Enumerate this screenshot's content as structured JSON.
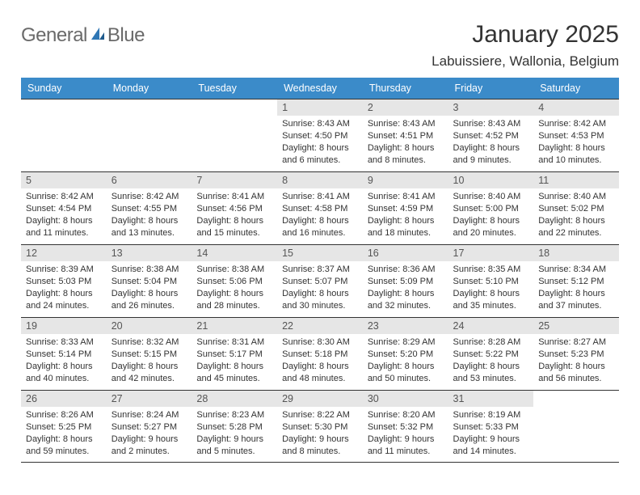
{
  "brand": {
    "word1": "General",
    "word2": "Blue",
    "text_color": "#6a6a6a",
    "accent_color": "#2f77b5"
  },
  "header": {
    "title": "January 2025",
    "location": "Labuissiere, Wallonia, Belgium"
  },
  "colors": {
    "header_bg": "#3b8bc9",
    "header_text": "#ffffff",
    "daynum_bg": "#e6e6e6",
    "border": "#333333",
    "body_text": "#333333",
    "page_bg": "#ffffff"
  },
  "fonts": {
    "family": "Arial",
    "title_size": 30,
    "subtitle_size": 17,
    "header_size": 12.5,
    "daynum_size": 12.5,
    "cell_size": 11
  },
  "calendar": {
    "type": "table",
    "columns": [
      "Sunday",
      "Monday",
      "Tuesday",
      "Wednesday",
      "Thursday",
      "Friday",
      "Saturday"
    ],
    "weeks": [
      [
        null,
        null,
        null,
        {
          "day": "1",
          "sunrise": "8:43 AM",
          "sunset": "4:50 PM",
          "daylight": "8 hours and 6 minutes."
        },
        {
          "day": "2",
          "sunrise": "8:43 AM",
          "sunset": "4:51 PM",
          "daylight": "8 hours and 8 minutes."
        },
        {
          "day": "3",
          "sunrise": "8:43 AM",
          "sunset": "4:52 PM",
          "daylight": "8 hours and 9 minutes."
        },
        {
          "day": "4",
          "sunrise": "8:42 AM",
          "sunset": "4:53 PM",
          "daylight": "8 hours and 10 minutes."
        }
      ],
      [
        {
          "day": "5",
          "sunrise": "8:42 AM",
          "sunset": "4:54 PM",
          "daylight": "8 hours and 11 minutes."
        },
        {
          "day": "6",
          "sunrise": "8:42 AM",
          "sunset": "4:55 PM",
          "daylight": "8 hours and 13 minutes."
        },
        {
          "day": "7",
          "sunrise": "8:41 AM",
          "sunset": "4:56 PM",
          "daylight": "8 hours and 15 minutes."
        },
        {
          "day": "8",
          "sunrise": "8:41 AM",
          "sunset": "4:58 PM",
          "daylight": "8 hours and 16 minutes."
        },
        {
          "day": "9",
          "sunrise": "8:41 AM",
          "sunset": "4:59 PM",
          "daylight": "8 hours and 18 minutes."
        },
        {
          "day": "10",
          "sunrise": "8:40 AM",
          "sunset": "5:00 PM",
          "daylight": "8 hours and 20 minutes."
        },
        {
          "day": "11",
          "sunrise": "8:40 AM",
          "sunset": "5:02 PM",
          "daylight": "8 hours and 22 minutes."
        }
      ],
      [
        {
          "day": "12",
          "sunrise": "8:39 AM",
          "sunset": "5:03 PM",
          "daylight": "8 hours and 24 minutes."
        },
        {
          "day": "13",
          "sunrise": "8:38 AM",
          "sunset": "5:04 PM",
          "daylight": "8 hours and 26 minutes."
        },
        {
          "day": "14",
          "sunrise": "8:38 AM",
          "sunset": "5:06 PM",
          "daylight": "8 hours and 28 minutes."
        },
        {
          "day": "15",
          "sunrise": "8:37 AM",
          "sunset": "5:07 PM",
          "daylight": "8 hours and 30 minutes."
        },
        {
          "day": "16",
          "sunrise": "8:36 AM",
          "sunset": "5:09 PM",
          "daylight": "8 hours and 32 minutes."
        },
        {
          "day": "17",
          "sunrise": "8:35 AM",
          "sunset": "5:10 PM",
          "daylight": "8 hours and 35 minutes."
        },
        {
          "day": "18",
          "sunrise": "8:34 AM",
          "sunset": "5:12 PM",
          "daylight": "8 hours and 37 minutes."
        }
      ],
      [
        {
          "day": "19",
          "sunrise": "8:33 AM",
          "sunset": "5:14 PM",
          "daylight": "8 hours and 40 minutes."
        },
        {
          "day": "20",
          "sunrise": "8:32 AM",
          "sunset": "5:15 PM",
          "daylight": "8 hours and 42 minutes."
        },
        {
          "day": "21",
          "sunrise": "8:31 AM",
          "sunset": "5:17 PM",
          "daylight": "8 hours and 45 minutes."
        },
        {
          "day": "22",
          "sunrise": "8:30 AM",
          "sunset": "5:18 PM",
          "daylight": "8 hours and 48 minutes."
        },
        {
          "day": "23",
          "sunrise": "8:29 AM",
          "sunset": "5:20 PM",
          "daylight": "8 hours and 50 minutes."
        },
        {
          "day": "24",
          "sunrise": "8:28 AM",
          "sunset": "5:22 PM",
          "daylight": "8 hours and 53 minutes."
        },
        {
          "day": "25",
          "sunrise": "8:27 AM",
          "sunset": "5:23 PM",
          "daylight": "8 hours and 56 minutes."
        }
      ],
      [
        {
          "day": "26",
          "sunrise": "8:26 AM",
          "sunset": "5:25 PM",
          "daylight": "8 hours and 59 minutes."
        },
        {
          "day": "27",
          "sunrise": "8:24 AM",
          "sunset": "5:27 PM",
          "daylight": "9 hours and 2 minutes."
        },
        {
          "day": "28",
          "sunrise": "8:23 AM",
          "sunset": "5:28 PM",
          "daylight": "9 hours and 5 minutes."
        },
        {
          "day": "29",
          "sunrise": "8:22 AM",
          "sunset": "5:30 PM",
          "daylight": "9 hours and 8 minutes."
        },
        {
          "day": "30",
          "sunrise": "8:20 AM",
          "sunset": "5:32 PM",
          "daylight": "9 hours and 11 minutes."
        },
        {
          "day": "31",
          "sunrise": "8:19 AM",
          "sunset": "5:33 PM",
          "daylight": "9 hours and 14 minutes."
        },
        null
      ]
    ],
    "labels": {
      "sunrise_prefix": "Sunrise: ",
      "sunset_prefix": "Sunset: ",
      "daylight_prefix": "Daylight: "
    }
  }
}
